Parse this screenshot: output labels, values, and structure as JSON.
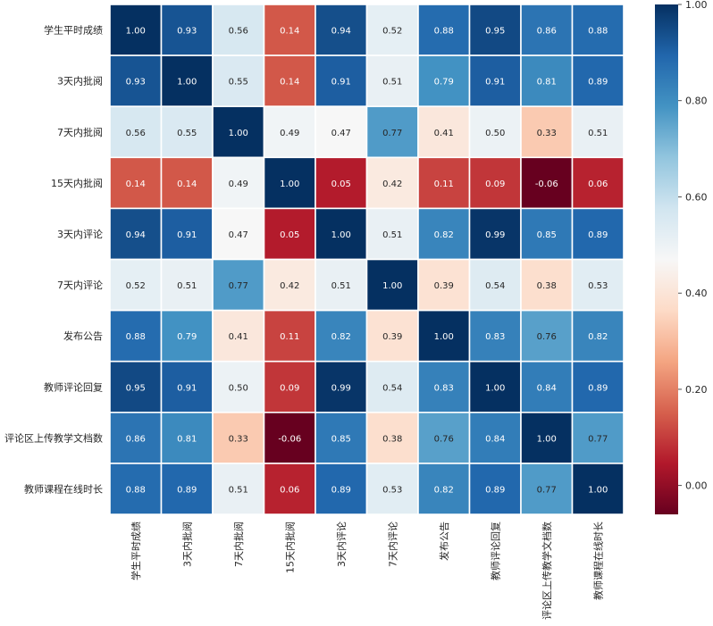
{
  "chart_data": {
    "type": "heatmap",
    "title": "",
    "xlabel": "",
    "ylabel": "",
    "labels": [
      "学生平时成绩",
      "3天内批阅",
      "7天内批阅",
      "15天内批阅",
      "3天内评论",
      "7天内评论",
      "发布公告",
      "教师评论回复",
      "评论区上传教学文档数",
      "教师课程在线时长"
    ],
    "matrix": [
      [
        1.0,
        0.93,
        0.56,
        0.14,
        0.94,
        0.52,
        0.88,
        0.95,
        0.86,
        0.88
      ],
      [
        0.93,
        1.0,
        0.55,
        0.14,
        0.91,
        0.51,
        0.79,
        0.91,
        0.81,
        0.89
      ],
      [
        0.56,
        0.55,
        1.0,
        0.49,
        0.47,
        0.77,
        0.41,
        0.5,
        0.33,
        0.51
      ],
      [
        0.14,
        0.14,
        0.49,
        1.0,
        0.05,
        0.42,
        0.11,
        0.09,
        -0.06,
        0.06
      ],
      [
        0.94,
        0.91,
        0.47,
        0.05,
        1.0,
        0.51,
        0.82,
        0.99,
        0.85,
        0.89
      ],
      [
        0.52,
        0.51,
        0.77,
        0.42,
        0.51,
        1.0,
        0.39,
        0.54,
        0.38,
        0.53
      ],
      [
        0.88,
        0.79,
        0.41,
        0.11,
        0.82,
        0.39,
        1.0,
        0.83,
        0.76,
        0.82
      ],
      [
        0.95,
        0.91,
        0.5,
        0.09,
        0.99,
        0.54,
        0.83,
        1.0,
        0.84,
        0.89
      ],
      [
        0.86,
        0.81,
        0.33,
        -0.06,
        0.85,
        0.38,
        0.76,
        0.84,
        1.0,
        0.77
      ],
      [
        0.88,
        0.89,
        0.51,
        0.06,
        0.89,
        0.53,
        0.82,
        0.89,
        0.77,
        1.0
      ]
    ],
    "value_format": "0.00",
    "colormap": "RdBu",
    "vmin": -0.06,
    "vmax": 1.0,
    "colorbar_ticks": [
      "1.00",
      "0.80",
      "0.60",
      "0.40",
      "0.20",
      "0.00"
    ],
    "colorbar_tick_values": [
      1.0,
      0.8,
      0.6,
      0.4,
      0.2,
      0.0
    ],
    "grid": true,
    "legend": "colorbar-right"
  }
}
